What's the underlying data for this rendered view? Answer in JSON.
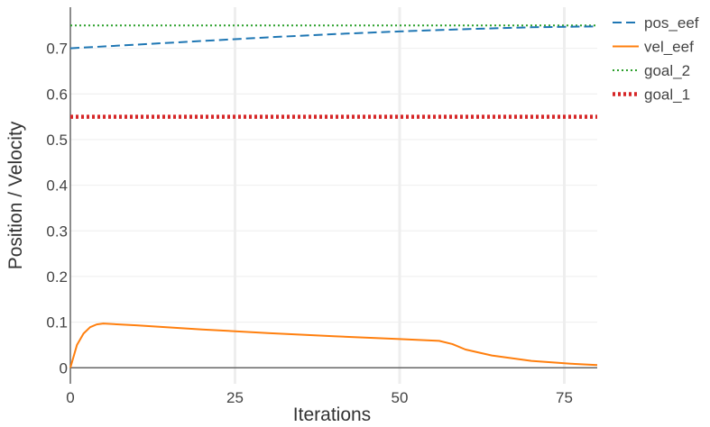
{
  "chart_data": {
    "type": "line",
    "xlabel": "Iterations",
    "ylabel": "Position / Velocity",
    "xlim": [
      0,
      80
    ],
    "ylim": [
      -0.035,
      0.79
    ],
    "x_ticks": [
      0,
      25,
      50,
      75
    ],
    "y_ticks": [
      0,
      0.1,
      0.2,
      0.3,
      0.4,
      0.5,
      0.6,
      0.7
    ],
    "x_tick_labels": [
      "0",
      "25",
      "50",
      "75"
    ],
    "y_tick_labels": [
      "0",
      "0.1",
      "0.2",
      "0.3",
      "0.4",
      "0.5",
      "0.6",
      "0.7"
    ],
    "grid": true,
    "legend_position": "right",
    "series": [
      {
        "name": "pos_eef",
        "color": "#1f77b4",
        "dash": "dashed",
        "x": [
          0,
          10,
          20,
          30,
          40,
          50,
          60,
          70,
          80
        ],
        "y": [
          0.7,
          0.708,
          0.716,
          0.724,
          0.731,
          0.737,
          0.742,
          0.746,
          0.748
        ]
      },
      {
        "name": "vel_eef",
        "color": "#ff7f0e",
        "dash": "solid",
        "x": [
          0,
          1,
          2,
          3,
          4,
          5,
          10,
          20,
          30,
          40,
          50,
          56,
          58,
          60,
          64,
          70,
          76,
          80
        ],
        "y": [
          0,
          0.05,
          0.075,
          0.089,
          0.095,
          0.097,
          0.093,
          0.084,
          0.076,
          0.069,
          0.063,
          0.059,
          0.052,
          0.04,
          0.027,
          0.015,
          0.009,
          0.006
        ]
      },
      {
        "name": "goal_2",
        "color": "#2ca02c",
        "dash": "dotted",
        "x": [
          0,
          80
        ],
        "y": [
          0.75,
          0.75
        ]
      },
      {
        "name": "goal_1",
        "color": "#d62728",
        "dash": "dotted-thick",
        "x": [
          0,
          80
        ],
        "y": [
          0.55,
          0.55
        ]
      }
    ]
  }
}
